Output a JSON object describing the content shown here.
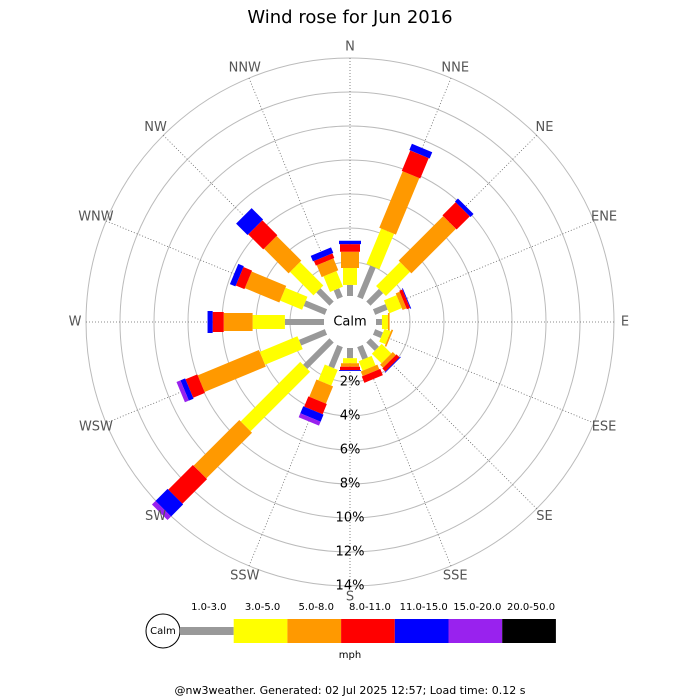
{
  "chart_data": {
    "type": "windrose",
    "title": "Wind rose for Jun 2016",
    "categories": [
      "N",
      "NNE",
      "NE",
      "ENE",
      "E",
      "ESE",
      "SE",
      "SSE",
      "S",
      "SSW",
      "SW",
      "WSW",
      "W",
      "WNW",
      "NW",
      "NNW"
    ],
    "center_label": "Calm",
    "series": [
      {
        "name": "1.0-3.0",
        "color": "#999999",
        "values": [
          0.65,
          2.0,
          1.05,
          0.8,
          0.35,
          0.5,
          0.7,
          0.8,
          0.6,
          1.35,
          2.2,
          1.65,
          2.3,
          1.35,
          1.1,
          0.55
        ]
      },
      {
        "name": "3.0-5.0",
        "color": "#ffff00",
        "values": [
          1.0,
          2.25,
          2.0,
          0.8,
          0.35,
          0.4,
          0.8,
          0.6,
          0.3,
          1.0,
          4.95,
          2.4,
          1.9,
          1.4,
          1.95,
          1.0
        ]
      },
      {
        "name": "5.0-8.0",
        "color": "#ff9900",
        "values": [
          0.95,
          3.6,
          3.7,
          0.25,
          0.1,
          0.1,
          0.25,
          0.3,
          0.2,
          1.1,
          3.8,
          3.9,
          1.7,
          2.2,
          2.05,
          0.75
        ]
      },
      {
        "name": "8.0-11.0",
        "color": "#ff0000",
        "values": [
          0.45,
          1.3,
          1.1,
          0.2,
          0,
          0,
          0.25,
          0.4,
          0.2,
          0.65,
          2.05,
          0.75,
          0.65,
          0.55,
          1.25,
          0.3
        ]
      },
      {
        "name": "11.0-15.0",
        "color": "#0000ff",
        "values": [
          0.2,
          0.4,
          0.25,
          0.05,
          0,
          0,
          0.05,
          0,
          0.05,
          0.45,
          1.0,
          0.3,
          0.3,
          0.35,
          0.95,
          0.35
        ]
      },
      {
        "name": "15.0-20.0",
        "color": "#9922ee",
        "values": [
          0,
          0,
          0,
          0,
          0,
          0,
          0,
          0,
          0,
          0.25,
          0.3,
          0.25,
          0,
          0,
          0,
          0
        ]
      },
      {
        "name": "20.0-50.0",
        "color": "#000000",
        "values": [
          0,
          0,
          0,
          0,
          0,
          0,
          0,
          0,
          0,
          0,
          0,
          0,
          0,
          0,
          0,
          0
        ]
      }
    ],
    "ylim": [
      0,
      14
    ],
    "yticks": [
      {
        "value": 2,
        "label": "2%"
      },
      {
        "value": 4,
        "label": "4%"
      },
      {
        "value": 6,
        "label": "6%"
      },
      {
        "value": 8,
        "label": "8%"
      },
      {
        "value": 10,
        "label": "10%"
      },
      {
        "value": 12,
        "label": "12%"
      },
      {
        "value": 14,
        "label": "14%"
      }
    ],
    "legend_title": "mph",
    "legend_calm": "Calm",
    "footer": "@nw3weather. Generated: 02 Jul 2025 12:57; Load time: 0.12 s"
  }
}
